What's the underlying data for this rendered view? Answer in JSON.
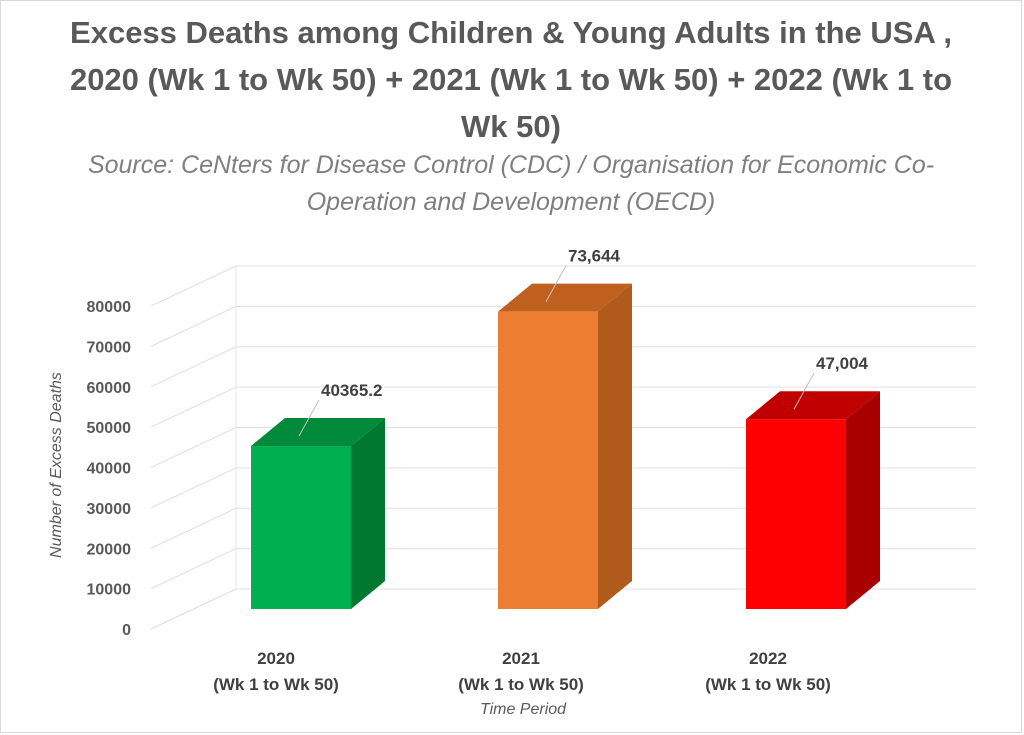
{
  "chart": {
    "title": "Excess Deaths among Children & Young Adults in the USA , 2020 (Wk 1 to Wk 50) + 2021 (Wk 1 to Wk 50) + 2022 (Wk 1 to Wk 50)",
    "subtitle": "Source: CeNters for Disease Control (CDC) / Organisation for Economic Co-Operation and Development (OECD)",
    "ylabel": "Number of Excess Deaths",
    "xlabel": "Time Period"
  },
  "chart_data": {
    "type": "bar",
    "style": "3d-column",
    "title": "Excess Deaths among Children & Young Adults in the USA , 2020 (Wk 1 to Wk 50) + 2021 (Wk 1 to Wk 50) + 2022 (Wk 1 to Wk 50)",
    "subtitle": "Source: CeNters for Disease Control (CDC) / Organisation for Economic Co-Operation and Development (OECD)",
    "xlabel": "Time Period",
    "ylabel": "Number of Excess Deaths",
    "categories": [
      {
        "year": "2020",
        "period": "(Wk 1 to Wk 50)"
      },
      {
        "year": "2021",
        "period": "(Wk 1 to Wk 50)"
      },
      {
        "year": "2022",
        "period": "(Wk 1 to Wk 50)"
      }
    ],
    "values": [
      40365.2,
      73644,
      47004
    ],
    "data_labels": [
      "40365.2",
      "73,644",
      "47,004"
    ],
    "colors": [
      {
        "front": "#00b050",
        "side": "#00782f",
        "top": "#008a3a"
      },
      {
        "front": "#ed7d31",
        "side": "#b05a1c",
        "top": "#c0601f"
      },
      {
        "front": "#ff0000",
        "side": "#a80000",
        "top": "#c00000"
      }
    ],
    "yticks": [
      "0",
      "10000",
      "20000",
      "30000",
      "40000",
      "50000",
      "60000",
      "70000",
      "80000"
    ],
    "ylim": [
      0,
      80000
    ],
    "grid": true,
    "legend": "none"
  }
}
